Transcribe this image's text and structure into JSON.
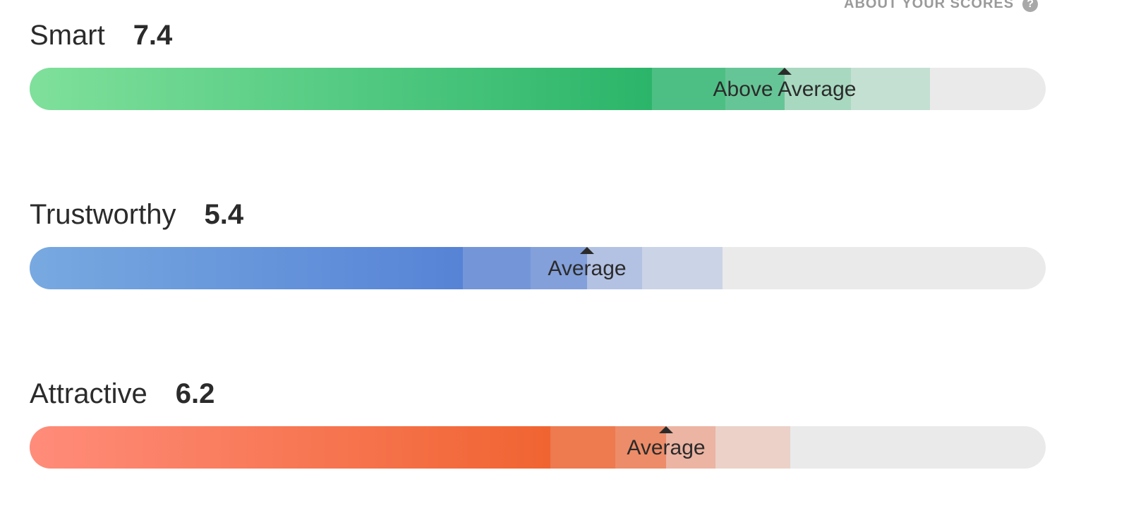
{
  "about": {
    "label": "ABOUT YOUR SCORES",
    "icon": "help-icon"
  },
  "scores": [
    {
      "name": "smart",
      "label": "Smart",
      "value": "7.4",
      "rating": "Above Average",
      "gradient": [
        "#7fe09b",
        "#2bb56a"
      ],
      "segments": [
        "#4dbf84",
        "#66c596",
        "#a8d8c0",
        "#c4e0d2"
      ]
    },
    {
      "name": "trustworthy",
      "label": "Trustworthy",
      "value": "5.4",
      "rating": "Average",
      "gradient": [
        "#78a9e0",
        "#5783d6"
      ],
      "segments": [
        "#7496d8",
        "#83a0da",
        "#b3c1e3",
        "#cbd3e6"
      ]
    },
    {
      "name": "attractive",
      "label": "Attractive",
      "value": "6.2",
      "rating": "Average",
      "gradient": [
        "#ff8c7a",
        "#f06431"
      ],
      "segments": [
        "#ee7a4f",
        "#ed8c68",
        "#ecb4a3",
        "#ebd1c8"
      ]
    }
  ]
}
